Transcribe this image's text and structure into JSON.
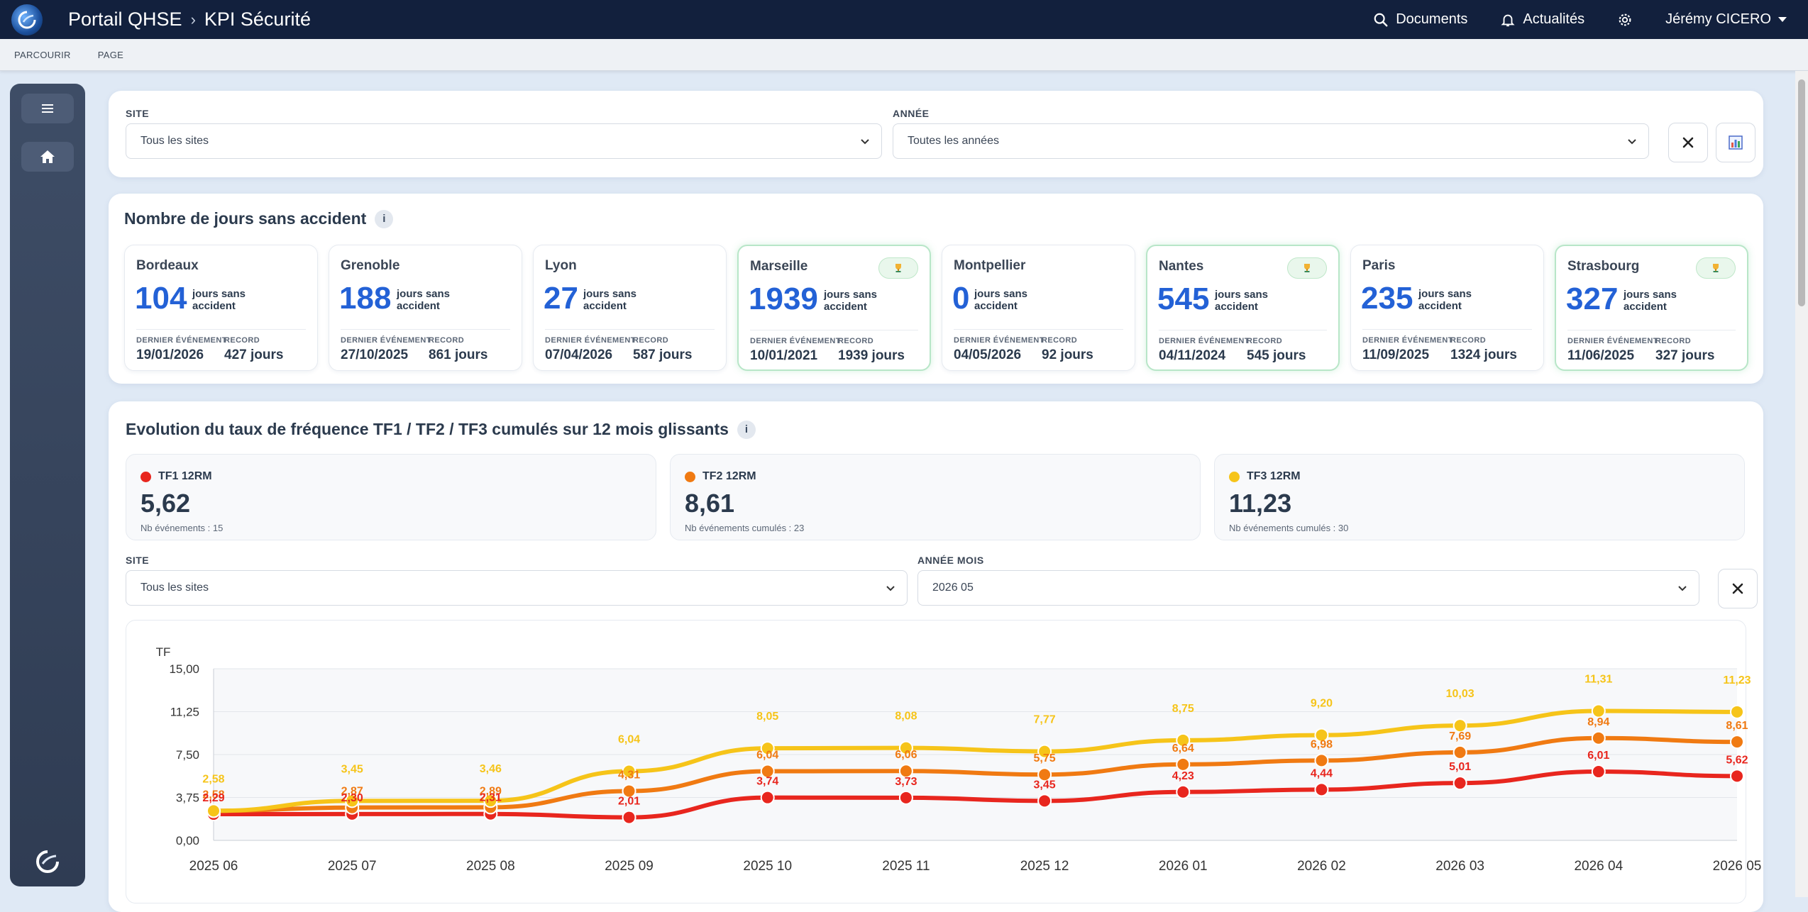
{
  "topbar": {
    "portal": "Portail QHSE",
    "separator": "›",
    "page": "KPI Sécurité",
    "documents": "Documents",
    "news": "Actualités",
    "user": "Jérémy CICERO"
  },
  "subbar": {
    "browse": "PARCOURIR",
    "page": "PAGE"
  },
  "filters": {
    "site_label": "SITE",
    "site_value": "Tous les sites",
    "year_label": "ANNÉE",
    "year_value": "Toutes les années"
  },
  "days": {
    "title": "Nombre de jours sans accident",
    "info": "i",
    "unit_line1": "jours sans",
    "unit_line2": "accident",
    "last_label": "DERNIER ÉVÉNEMENT",
    "record_label": "RECORD",
    "sites": [
      {
        "name": "Bordeaux",
        "days": "104",
        "last": "19/01/2026",
        "record": "427 jours",
        "is_record": false
      },
      {
        "name": "Grenoble",
        "days": "188",
        "last": "27/10/2025",
        "record": "861 jours",
        "is_record": false
      },
      {
        "name": "Lyon",
        "days": "27",
        "last": "07/04/2026",
        "record": "587 jours",
        "is_record": false
      },
      {
        "name": "Marseille",
        "days": "1939",
        "last": "10/01/2021",
        "record": "1939 jours",
        "is_record": true
      },
      {
        "name": "Montpellier",
        "days": "0",
        "last": "04/05/2026",
        "record": "92 jours",
        "is_record": false
      },
      {
        "name": "Nantes",
        "days": "545",
        "last": "04/11/2024",
        "record": "545 jours",
        "is_record": true
      },
      {
        "name": "Paris",
        "days": "235",
        "last": "11/09/2025",
        "record": "1324 jours",
        "is_record": false
      },
      {
        "name": "Strasbourg",
        "days": "327",
        "last": "11/06/2025",
        "record": "327 jours",
        "is_record": true
      }
    ]
  },
  "tf": {
    "title": "Evolution du taux de fréquence TF1 / TF2 / TF3 cumulés sur 12 mois glissants",
    "info": "i",
    "kpis": [
      {
        "label": "TF1 12RM",
        "value": "5,62",
        "sub": "Nb événements : 15",
        "color": "#e8261e"
      },
      {
        "label": "TF2 12RM",
        "value": "8,61",
        "sub": "Nb événements cumulés : 23",
        "color": "#f07a12"
      },
      {
        "label": "TF3 12RM",
        "value": "11,23",
        "sub": "Nb événements cumulés : 30",
        "color": "#f6c419"
      }
    ],
    "site_label": "SITE",
    "site_value": "Tous les sites",
    "month_label": "ANNÉE MOIS",
    "month_value": "2026 05"
  },
  "chart_data": {
    "type": "line",
    "ylabel": "TF",
    "ylim": [
      0,
      15
    ],
    "yticks": [
      "0,00",
      "3,75",
      "7,50",
      "11,25",
      "15,00"
    ],
    "categories": [
      "2025 06",
      "2025 07",
      "2025 08",
      "2025 09",
      "2025 10",
      "2025 11",
      "2025 12",
      "2026 01",
      "2026 02",
      "2026 03",
      "2026 04",
      "2026 05"
    ],
    "series": [
      {
        "color": "#f6c419",
        "values": [
          2.58,
          3.45,
          3.46,
          6.04,
          8.05,
          8.08,
          7.77,
          8.75,
          9.2,
          10.03,
          11.31,
          11.23
        ],
        "labels": [
          "2,58",
          "3,45",
          "3,46",
          "6,04",
          "8,05",
          "8,08",
          "7,77",
          "8,75",
          "9,20",
          "10,03",
          "11,31",
          "11,23"
        ]
      },
      {
        "color": "#f07a12",
        "values": [
          2.58,
          2.87,
          2.89,
          4.31,
          6.04,
          6.06,
          5.75,
          6.64,
          6.98,
          7.69,
          8.94,
          8.61
        ],
        "labels": [
          "2,58",
          "2,87",
          "2,89",
          "4,31",
          "6,04",
          "6,06",
          "5,75",
          "6,64",
          "6,98",
          "7,69",
          "8,94",
          "8,61"
        ]
      },
      {
        "color": "#e8261e",
        "values": [
          2.29,
          2.3,
          2.31,
          2.01,
          3.74,
          3.73,
          3.45,
          4.23,
          4.44,
          5.01,
          6.01,
          5.62
        ],
        "labels": [
          "2,29",
          "2,30",
          "2,31",
          "2,01",
          "3,74",
          "3,73",
          "3,45",
          "4,23",
          "4,44",
          "5,01",
          "6,01",
          "5,62"
        ]
      }
    ]
  }
}
